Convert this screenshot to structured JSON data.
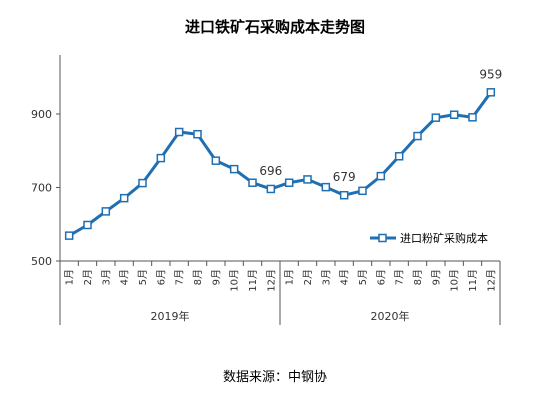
{
  "chart_data": {
    "type": "line",
    "title": "进口铁矿石采购成本走势图",
    "categories": [
      "1月",
      "2月",
      "3月",
      "4月",
      "5月",
      "6月",
      "7月",
      "8月",
      "9月",
      "10月",
      "11月",
      "12月",
      "1月",
      "2月",
      "3月",
      "4月",
      "5月",
      "6月",
      "7月",
      "8月",
      "9月",
      "10月",
      "11月",
      "12月"
    ],
    "year_groups": [
      {
        "label": "2019年",
        "count": 12
      },
      {
        "label": "2020年",
        "count": 12
      }
    ],
    "series": [
      {
        "name": "进口粉矿采购成本",
        "color": "#1f6fb2",
        "values": [
          569,
          598,
          635,
          671,
          712,
          780,
          851,
          845,
          773,
          750,
          713,
          696,
          713,
          722,
          701,
          679,
          691,
          731,
          785,
          840,
          890,
          898,
          891,
          959
        ]
      }
    ],
    "annotations": [
      {
        "index": 11,
        "label": "696"
      },
      {
        "index": 15,
        "label": "679"
      },
      {
        "index": 23,
        "label": "959"
      }
    ],
    "yticks": [
      "500",
      "700",
      "900"
    ],
    "ylim": [
      500,
      1000
    ],
    "legend_position": "right-middle",
    "grid": false
  },
  "source_text": "数据来源：中钢协"
}
